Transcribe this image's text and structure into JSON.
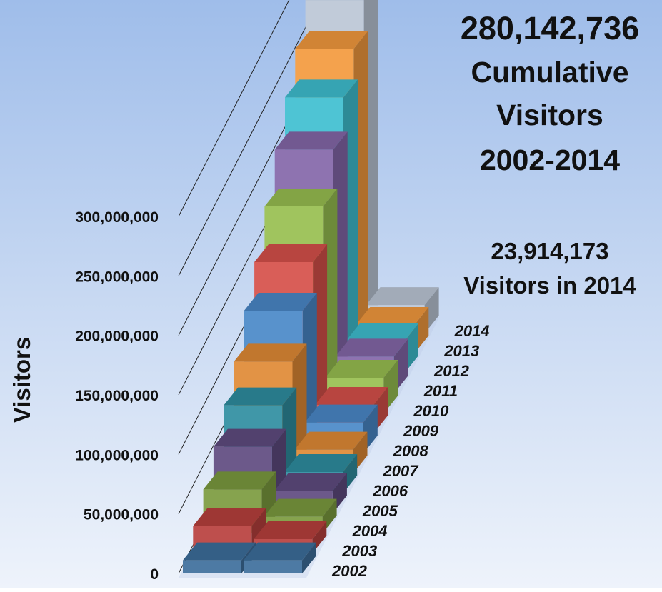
{
  "chart_data": {
    "type": "bar",
    "ylabel": "Visitors",
    "ylim": [
      0,
      300000000
    ],
    "y_ticks": [
      "0",
      "50,000,000",
      "100,000,000",
      "150,000,000",
      "200,000,000",
      "250,000,000",
      "300,000,000"
    ],
    "categories": [
      "2002",
      "2003",
      "2004",
      "2005",
      "2006",
      "2007",
      "2008",
      "2009",
      "2010",
      "2011",
      "2012",
      "2013",
      "2014"
    ],
    "series": [
      {
        "values": [
          11000000,
          23000000,
          37000000,
          56000000,
          74000000,
          94000000,
          120000000,
          144000000,
          174000000,
          205000000,
          232000000,
          256000000,
          280142736
        ]
      },
      {
        "values": [
          11000000,
          12000000,
          14000000,
          19000000,
          18000000,
          20000000,
          26000000,
          24000000,
          30000000,
          31000000,
          27000000,
          24000000,
          23914173
        ]
      }
    ],
    "colors": [
      "#3d6e9c",
      "#b8403d",
      "#7b9b3f",
      "#5f4b80",
      "#2f8ea0",
      "#e08a35",
      "#4a88c8",
      "#d6504a",
      "#98bf50",
      "#8467a9",
      "#3fbfd0",
      "#f39a3e",
      "#bcc7d6"
    ],
    "grid": true,
    "annotations": [
      {
        "value": "280,142,736",
        "lines": [
          "Cumulative",
          "Visitors",
          "2002-2014"
        ]
      },
      {
        "value": "23,914,173",
        "lines": [
          "Visitors in 2014"
        ]
      }
    ]
  }
}
